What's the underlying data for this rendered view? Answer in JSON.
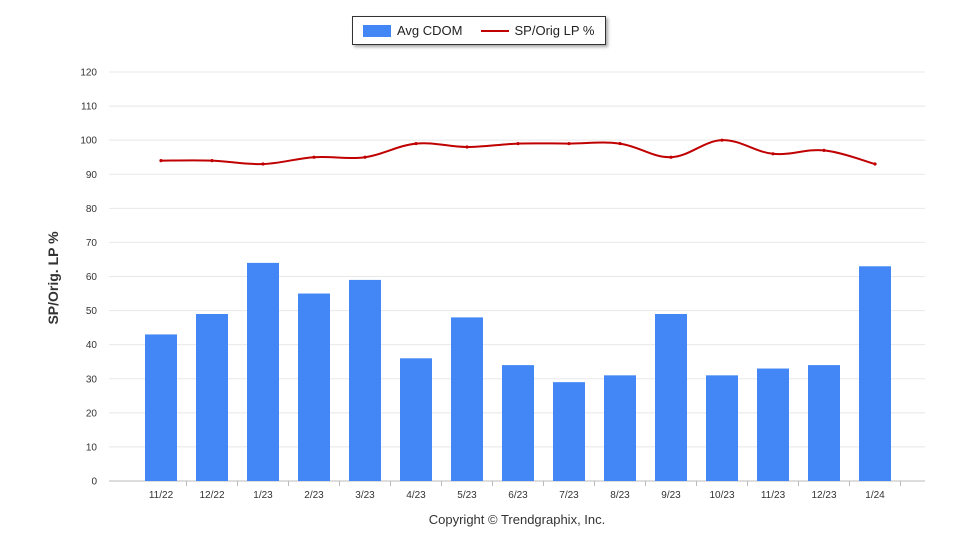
{
  "chart_data": {
    "type": "bar",
    "title": "",
    "ylabel": "SP/Orig. LP %",
    "xlabel": "",
    "ylim": [
      0,
      120
    ],
    "yticks": [
      0,
      10,
      20,
      30,
      40,
      50,
      60,
      70,
      80,
      90,
      100,
      110,
      120
    ],
    "categories": [
      "11/22",
      "12/22",
      "1/23",
      "2/23",
      "3/23",
      "4/23",
      "5/23",
      "6/23",
      "7/23",
      "8/23",
      "9/23",
      "10/23",
      "11/23",
      "12/23",
      "1/24"
    ],
    "series": [
      {
        "name": "Avg CDOM",
        "kind": "bar",
        "color": "#4287f5",
        "values": [
          43,
          49,
          64,
          55,
          59,
          36,
          48,
          34,
          29,
          31,
          49,
          31,
          33,
          34,
          63
        ]
      },
      {
        "name": "SP/Orig LP %",
        "kind": "line",
        "color": "#c00000",
        "values": [
          94,
          94,
          93,
          95,
          95,
          99,
          98,
          99,
          99,
          99,
          95,
          100,
          96,
          97,
          93
        ]
      }
    ],
    "legend": {
      "position": "top-center",
      "labels": [
        "Avg CDOM",
        "SP/Orig LP %"
      ]
    },
    "grid": true
  },
  "footer": {
    "copyright": "Copyright © Trendgraphix, Inc."
  }
}
